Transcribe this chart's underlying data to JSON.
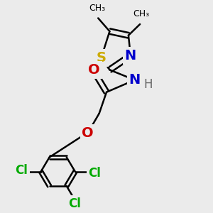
{
  "background_color": "#ebebeb",
  "bond_color": "#000000",
  "bond_width": 1.8,
  "atoms": {
    "S": {
      "color": "#ccaa00",
      "fontsize": 14
    },
    "N": {
      "color": "#0000cc",
      "fontsize": 14
    },
    "O": {
      "color": "#cc0000",
      "fontsize": 14
    },
    "Cl": {
      "color": "#00aa00",
      "fontsize": 12
    },
    "H": {
      "color": "#666666",
      "fontsize": 12
    }
  },
  "figure_size": [
    3.0,
    3.0
  ],
  "dpi": 100
}
